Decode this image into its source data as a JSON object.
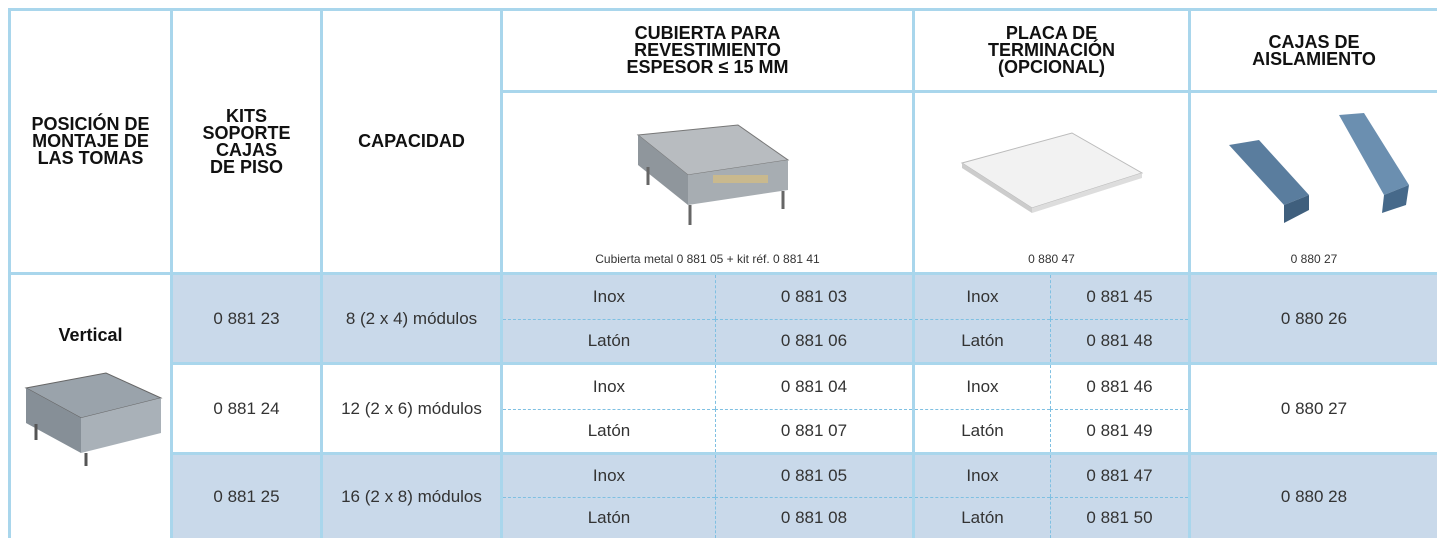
{
  "header": {
    "position": "POSICIÓN DE\nMONTAJE DE\nLAS TOMAS",
    "kits": "KITS\nSOPORTE\nCAJAS\nDE PISO",
    "capacity": "CAPACIDAD",
    "cover": "CUBIERTA PARA\nREVESTIMIENTO\nESPESOR ≤ 15 MM",
    "plate": "PLACA DE\nTERMINACIÓN\n(OPCIONAL)",
    "boxes": "CAJAS DE\nAISLAMIENTO"
  },
  "images": {
    "cover_caption": "Cubierta metal 0 881 05 + kit réf. 0 881 41",
    "plate_caption": "0 880 47",
    "boxes_caption": "0 880 27"
  },
  "position_label": "Vertical",
  "rows": [
    {
      "kit": "0 881 23",
      "capacity": "8 (2 x 4) módulos",
      "cover": [
        [
          "Inox",
          "0 881 03"
        ],
        [
          "Latón",
          "0 881 06"
        ]
      ],
      "plate": [
        [
          "Inox",
          "0 881 45"
        ],
        [
          "Latón",
          "0 881 48"
        ]
      ],
      "boxes": "0 880 26"
    },
    {
      "kit": "0 881 24",
      "capacity": "12 (2 x 6) módulos",
      "cover": [
        [
          "Inox",
          "0 881 04"
        ],
        [
          "Latón",
          "0 881 07"
        ]
      ],
      "plate": [
        [
          "Inox",
          "0 881 46"
        ],
        [
          "Latón",
          "0 881 49"
        ]
      ],
      "boxes": "0 880 27"
    },
    {
      "kit": "0 881 25",
      "capacity": "16 (2 x 8) módulos",
      "cover": [
        [
          "Inox",
          "0 881 05"
        ],
        [
          "Latón",
          "0 881 08"
        ]
      ],
      "plate": [
        [
          "Inox",
          "0 881 47"
        ],
        [
          "Latón",
          "0 881 50"
        ]
      ],
      "boxes": "0 880 28"
    }
  ]
}
